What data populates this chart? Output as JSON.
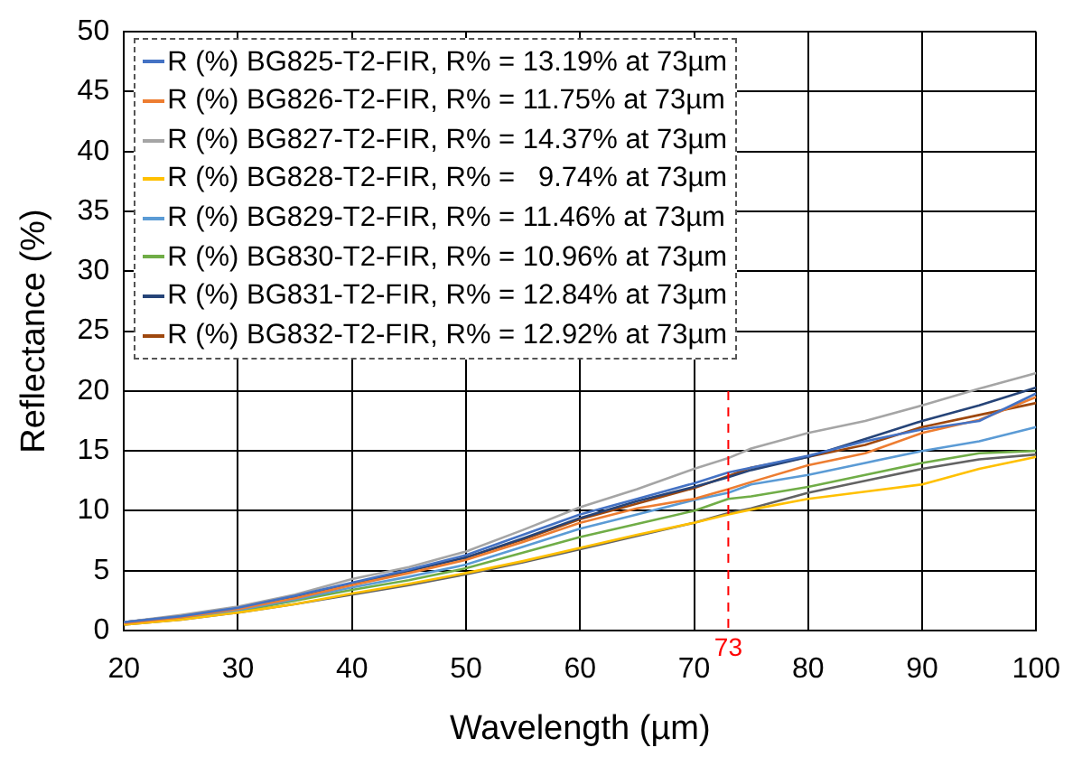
{
  "chart_data": {
    "type": "line",
    "xlabel": "Wavelength (µm)",
    "ylabel": "Reflectance (%)",
    "x": [
      20,
      25,
      30,
      35,
      40,
      45,
      50,
      55,
      60,
      65,
      70,
      73,
      75,
      80,
      85,
      90,
      95,
      100
    ],
    "xlim": [
      20,
      100
    ],
    "xticks": [
      20,
      30,
      40,
      50,
      60,
      70,
      80,
      90,
      100
    ],
    "ylim": [
      0,
      50
    ],
    "yticks": [
      0,
      5,
      10,
      15,
      20,
      25,
      30,
      35,
      40,
      45,
      50
    ],
    "grid": true,
    "legend": "top left",
    "marker": "none",
    "line_style": "solid",
    "ref_lines": [
      {
        "axis": "x",
        "value": 73,
        "label": "73",
        "color": "#ff0000",
        "line_style": "dashed"
      }
    ],
    "series": [
      {
        "name": "R (%) BG825-T2-FIR, R% = 13.19% at 73µm",
        "color": "#4472c4",
        "values": [
          0.7,
          1.2,
          1.9,
          2.9,
          4.0,
          5.1,
          6.3,
          8.0,
          9.7,
          11.0,
          12.3,
          13.2,
          13.6,
          14.6,
          15.8,
          16.8,
          17.5,
          19.8
        ]
      },
      {
        "name": "R (%) BG826-T2-FIR, R% = 11.75% at 73µm",
        "color": "#ed7d31",
        "values": [
          0.6,
          1.1,
          1.8,
          2.7,
          3.8,
          4.8,
          5.9,
          7.4,
          9.0,
          10.2,
          11.0,
          11.8,
          12.4,
          13.8,
          14.8,
          16.5,
          17.6,
          19.5
        ]
      },
      {
        "name": "R (%) BG827-T2-FIR, R% = 14.37% at 73µm",
        "color": "#a5a5a5",
        "values": [
          0.7,
          1.3,
          2.0,
          3.0,
          4.3,
          5.3,
          6.6,
          8.4,
          10.3,
          11.8,
          13.5,
          14.4,
          15.2,
          16.5,
          17.5,
          18.8,
          20.2,
          21.5
        ]
      },
      {
        "name": "R (%) BG828-T2-FIR, R% =   9.74% at 73µm",
        "color": "#ffc000",
        "values": [
          0.5,
          0.9,
          1.5,
          2.2,
          3.1,
          3.9,
          4.8,
          5.8,
          6.9,
          8.0,
          9.0,
          9.7,
          10.1,
          11.0,
          11.6,
          12.2,
          13.5,
          14.5
        ]
      },
      {
        "name": "R (%) BG829-T2-FIR, R% = 11.46% at 73µm",
        "color": "#5b9bd5",
        "values": [
          0.6,
          1.1,
          1.7,
          2.6,
          3.6,
          4.5,
          5.5,
          7.0,
          8.5,
          9.7,
          10.9,
          11.5,
          12.2,
          13.0,
          14.0,
          15.0,
          15.8,
          17.0
        ]
      },
      {
        "name": "R (%) BG830-T2-FIR, R% = 10.96% at 73µm",
        "color": "#70ad47",
        "values": [
          0.6,
          1.0,
          1.6,
          2.5,
          3.4,
          4.2,
          5.2,
          6.5,
          7.8,
          8.9,
          10.0,
          11.0,
          11.2,
          12.0,
          13.0,
          14.0,
          14.8,
          15.0
        ]
      },
      {
        "name": "R (%) BG831-T2-FIR, R% = 12.84% at 73µm",
        "color": "#264478",
        "values": [
          0.7,
          1.2,
          1.9,
          2.8,
          3.9,
          5.0,
          6.1,
          7.7,
          9.4,
          10.8,
          12.0,
          12.8,
          13.4,
          14.5,
          16.0,
          17.5,
          18.8,
          20.3
        ]
      },
      {
        "name": "R (%) BG832-T2-FIR, R% = 12.92% at 73µm",
        "color": "#9e480e",
        "values": [
          0.7,
          1.2,
          1.9,
          2.8,
          3.9,
          5.0,
          6.1,
          7.6,
          9.3,
          10.6,
          11.9,
          12.9,
          13.6,
          14.5,
          15.5,
          17.0,
          18.0,
          19.0
        ]
      },
      {
        "color": "#636363",
        "values": [
          0.5,
          0.9,
          1.5,
          2.2,
          3.0,
          3.8,
          4.7,
          5.7,
          6.8,
          7.9,
          9.0,
          9.8,
          10.2,
          11.5,
          12.5,
          13.5,
          14.3,
          14.7
        ]
      }
    ]
  }
}
